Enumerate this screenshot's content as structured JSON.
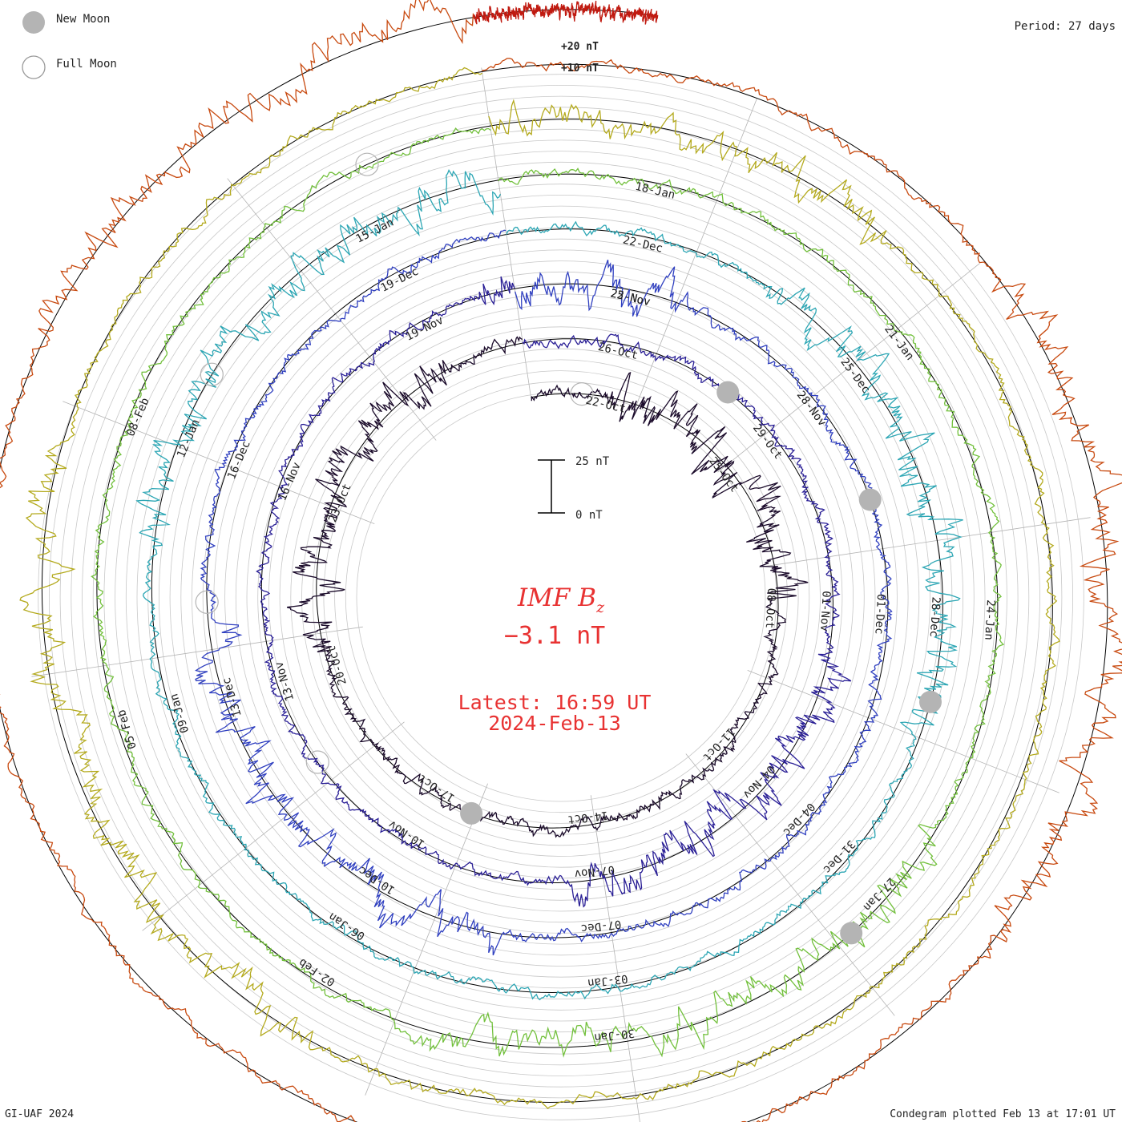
{
  "header": {
    "legend_new_moon": "New Moon",
    "legend_full_moon": "Full Moon",
    "period": "Period: 27 days"
  },
  "footer": {
    "credit": "GI-UAF 2024",
    "plotted": "Condegram plotted Feb 13 at 17:01 UT"
  },
  "center": {
    "quantity_main": "IMF B",
    "quantity_sub": "z",
    "current_value": "−3.1 nT",
    "latest_label": "Latest: 16:59 UT",
    "latest_date": "2024-Feb-13"
  },
  "scale_bar": {
    "top_label": "25 nT",
    "bottom_label": "0 nT"
  },
  "ref_labels": [
    "+20 nT",
    "+10 nT"
  ],
  "colors": {
    "background": "#ffffff",
    "grid": "#c8c8c8",
    "spoke": "#b4b4b4",
    "baseline": "#000000",
    "moon": "#b4b4b4",
    "headline": "#e83232",
    "ring_colors": [
      "#1a0a2a",
      "#2a1f96",
      "#3040c0",
      "#2ca6b4",
      "#72c03c",
      "#b4aa1e",
      "#c84a10",
      "#c01a10"
    ]
  },
  "chart_data": {
    "type": "line",
    "title": "IMF Bz",
    "period_days": 27,
    "units": "nT",
    "rings": [
      {
        "index": 0,
        "date_labels": [
          "22-Oct",
          "25-Oct",
          "08-Oct",
          "11-Oct",
          "14-Oct",
          "17-Oct",
          "20-Oct",
          "23-Oct"
        ]
      },
      {
        "index": 1,
        "date_labels": [
          "26-Oct",
          "29-Oct",
          "01-Nov",
          "04-Nov",
          "07-Nov",
          "10-Nov",
          "13-Nov",
          "16-Nov",
          "19-Nov",
          "22-Nov"
        ]
      },
      {
        "index": 2,
        "date_labels": [
          "25-Nov",
          "28-Nov",
          "01-Dec",
          "04-Dec",
          "07-Dec",
          "10-Dec",
          "13-Dec",
          "16-Dec",
          "19-Dec"
        ]
      },
      {
        "index": 3,
        "date_labels": [
          "22-Dec",
          "25-Dec",
          "28-Dec",
          "31-Dec",
          "03-Jan",
          "06-Jan",
          "09-Jan",
          "12-Jan",
          "15-Jan"
        ]
      },
      {
        "index": 4,
        "date_labels": [
          "18-Jan",
          "21-Jan",
          "24-Jan",
          "27-Jan",
          "30-Jan",
          "02-Feb",
          "05-Feb",
          "08-Feb"
        ]
      }
    ],
    "moon_markers": [
      {
        "type": "full"
      },
      {
        "type": "new"
      },
      {
        "type": "new"
      },
      {
        "type": "full"
      },
      {
        "type": "new"
      },
      {
        "type": "full"
      },
      {
        "type": "new"
      },
      {
        "type": "full"
      },
      {
        "type": "new"
      },
      {
        "type": "full"
      }
    ]
  }
}
